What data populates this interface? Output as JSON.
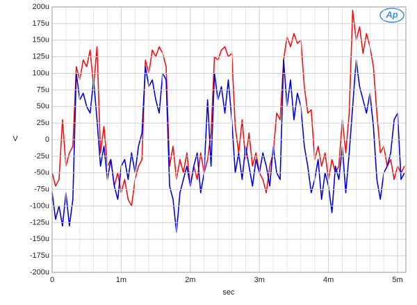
{
  "chart_data": {
    "type": "line",
    "logo": "Ap",
    "xlabel": "sec",
    "ylabel": "V",
    "xlim": [
      0,
      0.00512
    ],
    "ylim": [
      -0.0002,
      0.0002
    ],
    "xticks": [
      0,
      {
        "value": 0.001,
        "label": "1m"
      },
      {
        "value": 0.002,
        "label": "2m"
      },
      {
        "value": 0.003,
        "label": "3m"
      },
      {
        "value": 0.004,
        "label": "4m"
      },
      {
        "value": 0.005,
        "label": "5m"
      }
    ],
    "yticks": [
      {
        "value": 0.0002,
        "label": "200u"
      },
      {
        "value": 0.000175,
        "label": "175u"
      },
      {
        "value": 0.00015,
        "label": "150u"
      },
      {
        "value": 0.000125,
        "label": "125u"
      },
      {
        "value": 0.0001,
        "label": "100u"
      },
      {
        "value": 7.5e-05,
        "label": "75u"
      },
      {
        "value": 5e-05,
        "label": "50u"
      },
      {
        "value": 2.5e-05,
        "label": "25u"
      },
      0,
      {
        "value": -2.5e-05,
        "label": "-25u"
      },
      {
        "value": -5e-05,
        "label": "-50u"
      },
      {
        "value": -7.5e-05,
        "label": "-75u"
      },
      {
        "value": -0.0001,
        "label": "-100u"
      },
      {
        "value": -0.000125,
        "label": "-125u"
      },
      {
        "value": -0.00015,
        "label": "-150u"
      },
      {
        "value": -0.000175,
        "label": "-175u"
      },
      {
        "value": -0.0002,
        "label": "-200u"
      }
    ],
    "grid": true,
    "x": [
      0,
      5e-05,
      0.0001,
      0.00015,
      0.0002,
      0.00025,
      0.0003,
      0.00035,
      0.0004,
      0.00045,
      0.0005,
      0.00055,
      0.0006,
      0.00065,
      0.0007,
      0.00075,
      0.0008,
      0.00085,
      0.0009,
      0.00095,
      0.001,
      0.00105,
      0.0011,
      0.00115,
      0.0012,
      0.00125,
      0.0013,
      0.00135,
      0.0014,
      0.00145,
      0.0015,
      0.00155,
      0.0016,
      0.00165,
      0.0017,
      0.00175,
      0.0018,
      0.00185,
      0.0019,
      0.00195,
      0.002,
      0.00205,
      0.0021,
      0.00215,
      0.0022,
      0.00225,
      0.0023,
      0.00235,
      0.0024,
      0.00245,
      0.0025,
      0.00255,
      0.0026,
      0.00265,
      0.0027,
      0.00275,
      0.0028,
      0.00285,
      0.0029,
      0.00295,
      0.003,
      0.00305,
      0.0031,
      0.00315,
      0.0032,
      0.00325,
      0.0033,
      0.00335,
      0.0034,
      0.00345,
      0.0035,
      0.00355,
      0.0036,
      0.00365,
      0.0037,
      0.00375,
      0.0038,
      0.00385,
      0.0039,
      0.00395,
      0.004,
      0.00405,
      0.0041,
      0.00415,
      0.0042,
      0.00425,
      0.0043,
      0.00435,
      0.0044,
      0.00445,
      0.0045,
      0.00455,
      0.0046,
      0.00465,
      0.0047,
      0.00475,
      0.0048,
      0.00485,
      0.0049,
      0.00495,
      0.005,
      0.00505,
      0.0051
    ],
    "series": [
      {
        "color": "#ee1111",
        "values": [
          -5e-05,
          -7e-05,
          -6e-05,
          3e-05,
          -4e-05,
          -2e-05,
          -1e-05,
          0.00011,
          9e-05,
          0.00012,
          0.00011,
          0.000135,
          8e-05,
          0.00014,
          -2e-05,
          2e-05,
          -4e-05,
          -3e-05,
          -7e-05,
          -5e-05,
          -8e-05,
          -6e-05,
          -9e-05,
          -0.0001,
          -6e-05,
          -4e-05,
          -3e-05,
          0.00012,
          0.0001,
          0.000135,
          0.000125,
          0.00014,
          0.00013,
          0.00011,
          -4e-05,
          -1e-05,
          -6e-05,
          -3e-05,
          -5e-05,
          -2e-05,
          -7e-05,
          -4e-05,
          -6e-05,
          -2e-05,
          -5e-05,
          -3e-05,
          1e-05,
          0.000125,
          0.00012,
          0.000135,
          0.00014,
          0.000125,
          0.00013,
          2e-05,
          -2e-05,
          3e-05,
          -3e-05,
          1e-05,
          -4e-05,
          -2e-05,
          -5e-05,
          -6e-05,
          -8e-05,
          -4e-05,
          -2e-05,
          4e-05,
          3e-05,
          0.00012,
          0.000155,
          0.00014,
          0.00016,
          0.000145,
          0.00015,
          8e-05,
          4e-05,
          4.5e-05,
          -3e-05,
          -1e-05,
          -4e-05,
          -2e-05,
          -6e-05,
          -3e-05,
          -5e-05,
          -4e-05,
          3e-05,
          -2e-05,
          4e-05,
          0.000195,
          0.00015,
          0.00017,
          0.00013,
          0.00016,
          0.00014,
          0.00011,
          4e-05,
          -2e-05,
          -1e-05,
          -4e-05,
          -3e-05,
          -6e-05,
          -4e-05,
          -5e-05,
          -4e-05
        ]
      },
      {
        "color": "#0000dd",
        "values": [
          -8e-05,
          -0.00012,
          -0.0001,
          -0.00013,
          -8e-05,
          -0.00013,
          -9e-05,
          0.0001,
          6e-05,
          7e-05,
          5e-05,
          4e-05,
          9e-05,
          3e-05,
          -4e-05,
          -1e-05,
          -6e-05,
          -3e-05,
          -7e-05,
          -9e-05,
          -4e-05,
          -3e-05,
          -6e-05,
          -2e-05,
          -5e-05,
          -1e-05,
          1e-05,
          0.00011,
          8e-05,
          9e-05,
          6e-05,
          4e-05,
          0.0001,
          9e-05,
          -7e-05,
          -9e-05,
          -0.00014,
          -8e-05,
          -6e-05,
          -4e-05,
          -7e-05,
          -4e-05,
          -2e-05,
          -8e-05,
          -5e-05,
          6e-05,
          -4e-05,
          0.0001,
          6e-05,
          8e-05,
          4e-05,
          9e-05,
          3e-05,
          -5e-05,
          -2e-05,
          -6e-05,
          -1e-05,
          -4e-05,
          -7e-05,
          -3e-05,
          -5e-05,
          -2e-05,
          -4e-05,
          -7e-05,
          -1e-05,
          -5e-05,
          -6e-05,
          0.00012,
          5e-05,
          9e-05,
          3e-05,
          7e-05,
          5e-05,
          -1e-05,
          -4e-05,
          -8e-05,
          -6e-05,
          -3e-05,
          -9e-05,
          -5e-05,
          -7e-05,
          -0.00011,
          -4e-05,
          -6e-05,
          -1e-05,
          -8e-05,
          -2e-05,
          5e-05,
          0.00012,
          8e-05,
          6e-05,
          4e-05,
          7e-05,
          2e-05,
          -6e-05,
          -9e-05,
          -5e-05,
          -4e-05,
          -2e-05,
          3e-05,
          4e-05,
          -6e-05,
          -5e-05
        ]
      }
    ]
  }
}
